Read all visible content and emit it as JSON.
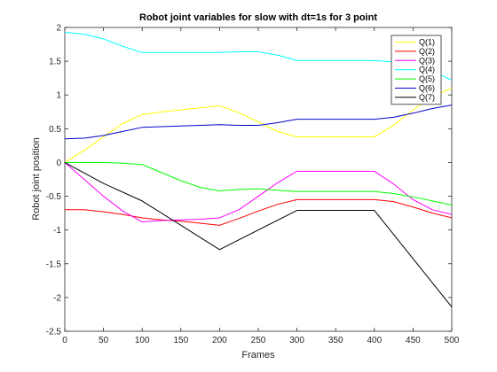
{
  "chart_data": {
    "type": "line",
    "title": "Robot joint variables for slow with dt=1s for 3 point",
    "xlabel": "Frames",
    "ylabel": "Robot joint position",
    "xlim": [
      0,
      500
    ],
    "ylim": [
      -2.5,
      2
    ],
    "xticks": [
      0,
      50,
      100,
      150,
      200,
      250,
      300,
      350,
      400,
      450,
      500
    ],
    "yticks": [
      -2.5,
      -2,
      -1.5,
      -1,
      -0.5,
      0,
      0.5,
      1,
      1.5,
      2
    ],
    "xtick_labels": [
      "0",
      "50",
      "100",
      "150",
      "200",
      "250",
      "300",
      "350",
      "400",
      "450",
      "500"
    ],
    "ytick_labels": [
      "-2.5",
      "-2",
      "-1.5",
      "-1",
      "-0.5",
      "0",
      "0.5",
      "1",
      "1.5",
      "2"
    ],
    "grid": false,
    "legend_position": "top-right",
    "series": [
      {
        "name": "Q(1)",
        "color": "#ffff00",
        "x": [
          0,
          25,
          50,
          75,
          100,
          125,
          150,
          175,
          200,
          225,
          250,
          275,
          300,
          325,
          350,
          375,
          400,
          425,
          450,
          475,
          500
        ],
        "y": [
          0,
          0.18,
          0.38,
          0.58,
          0.71,
          0.75,
          0.78,
          0.81,
          0.84,
          0.74,
          0.6,
          0.46,
          0.38,
          0.38,
          0.38,
          0.38,
          0.38,
          0.55,
          0.78,
          0.98,
          1.1
        ]
      },
      {
        "name": "Q(2)",
        "color": "#ff0000",
        "x": [
          0,
          25,
          50,
          75,
          100,
          125,
          150,
          175,
          200,
          225,
          250,
          275,
          300,
          325,
          350,
          375,
          400,
          425,
          450,
          475,
          500
        ],
        "y": [
          -0.7,
          -0.7,
          -0.73,
          -0.77,
          -0.82,
          -0.85,
          -0.87,
          -0.9,
          -0.93,
          -0.83,
          -0.72,
          -0.62,
          -0.55,
          -0.55,
          -0.55,
          -0.55,
          -0.55,
          -0.58,
          -0.66,
          -0.75,
          -0.82
        ]
      },
      {
        "name": "Q(3)",
        "color": "#ff00ff",
        "x": [
          0,
          25,
          50,
          75,
          100,
          125,
          150,
          175,
          200,
          225,
          250,
          275,
          300,
          325,
          350,
          375,
          400,
          425,
          450,
          475,
          500
        ],
        "y": [
          0,
          -0.25,
          -0.5,
          -0.72,
          -0.88,
          -0.86,
          -0.85,
          -0.84,
          -0.82,
          -0.7,
          -0.5,
          -0.3,
          -0.13,
          -0.13,
          -0.13,
          -0.13,
          -0.13,
          -0.32,
          -0.55,
          -0.7,
          -0.77
        ]
      },
      {
        "name": "Q(4)",
        "color": "#00ffff",
        "x": [
          0,
          25,
          50,
          75,
          100,
          125,
          150,
          175,
          200,
          225,
          250,
          275,
          300,
          325,
          350,
          375,
          400,
          425,
          450,
          475,
          500
        ],
        "y": [
          1.93,
          1.9,
          1.83,
          1.72,
          1.63,
          1.63,
          1.63,
          1.63,
          1.63,
          1.64,
          1.64,
          1.59,
          1.51,
          1.51,
          1.51,
          1.51,
          1.51,
          1.49,
          1.44,
          1.35,
          1.22
        ]
      },
      {
        "name": "Q(5)",
        "color": "#00ff00",
        "x": [
          0,
          25,
          50,
          75,
          100,
          125,
          150,
          175,
          200,
          225,
          250,
          275,
          300,
          325,
          350,
          375,
          400,
          425,
          450,
          475,
          500
        ],
        "y": [
          0,
          0,
          0,
          -0.01,
          -0.03,
          -0.15,
          -0.27,
          -0.37,
          -0.42,
          -0.4,
          -0.39,
          -0.41,
          -0.43,
          -0.43,
          -0.43,
          -0.43,
          -0.43,
          -0.46,
          -0.51,
          -0.57,
          -0.63
        ]
      },
      {
        "name": "Q(6)",
        "color": "#0000c8",
        "x": [
          0,
          25,
          50,
          75,
          100,
          125,
          150,
          175,
          200,
          225,
          250,
          275,
          300,
          325,
          350,
          375,
          400,
          425,
          450,
          475,
          500
        ],
        "y": [
          0.35,
          0.36,
          0.4,
          0.46,
          0.52,
          0.53,
          0.54,
          0.55,
          0.56,
          0.55,
          0.55,
          0.59,
          0.64,
          0.64,
          0.64,
          0.64,
          0.64,
          0.67,
          0.73,
          0.8,
          0.85
        ]
      },
      {
        "name": "Q(7)",
        "color": "#000000",
        "x": [
          0,
          50,
          100,
          200,
          300,
          400,
          500
        ],
        "y": [
          0,
          -0.31,
          -0.57,
          -1.29,
          -0.71,
          -0.71,
          -2.14
        ]
      }
    ]
  }
}
